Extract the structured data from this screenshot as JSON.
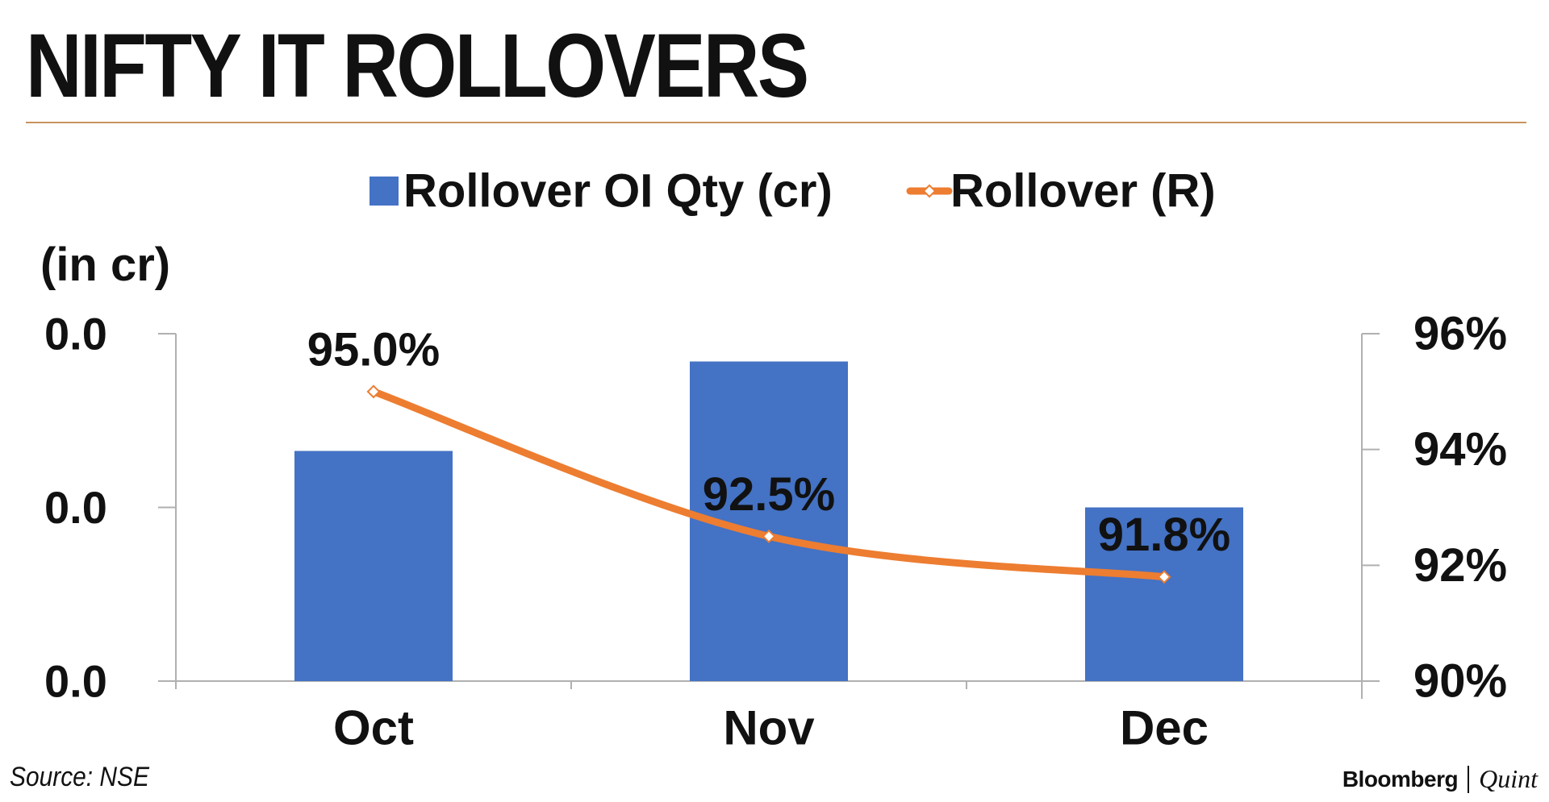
{
  "page": {
    "title": "NIFTY IT ROLLOVERS",
    "source": "Source: NSE",
    "brand_left": "Bloomberg",
    "brand_right": "Quint"
  },
  "colors": {
    "bar": "#4472c4",
    "line": "#ed7d31",
    "rule": "#c9935e",
    "axis": "#b0b0b0",
    "text": "#111111"
  },
  "chart_data": {
    "type": "bar",
    "categories": [
      "Oct",
      "Nov",
      "Dec"
    ],
    "series": [
      {
        "name": "Rollover OI Qty (cr)",
        "type": "bar",
        "axis": "left",
        "values": [
          0.0265,
          0.0368,
          0.02
        ]
      },
      {
        "name": "Rollover (R)",
        "type": "line",
        "axis": "right",
        "values": [
          95.0,
          92.5,
          91.8
        ],
        "data_labels": [
          "95.0%",
          "92.5%",
          "91.8%"
        ]
      }
    ],
    "left_axis": {
      "label": "(in cr)",
      "ylim": [
        0,
        0.04
      ],
      "ticks": [
        0,
        0.02,
        0.04
      ],
      "tick_labels": [
        "0.0",
        "0.0",
        "0.0"
      ]
    },
    "right_axis": {
      "ylim": [
        90,
        96
      ],
      "ticks": [
        90,
        92,
        94,
        96
      ],
      "tick_labels": [
        "90%",
        "92%",
        "94%",
        "96%"
      ]
    },
    "legend": "top-center",
    "grid": false
  }
}
